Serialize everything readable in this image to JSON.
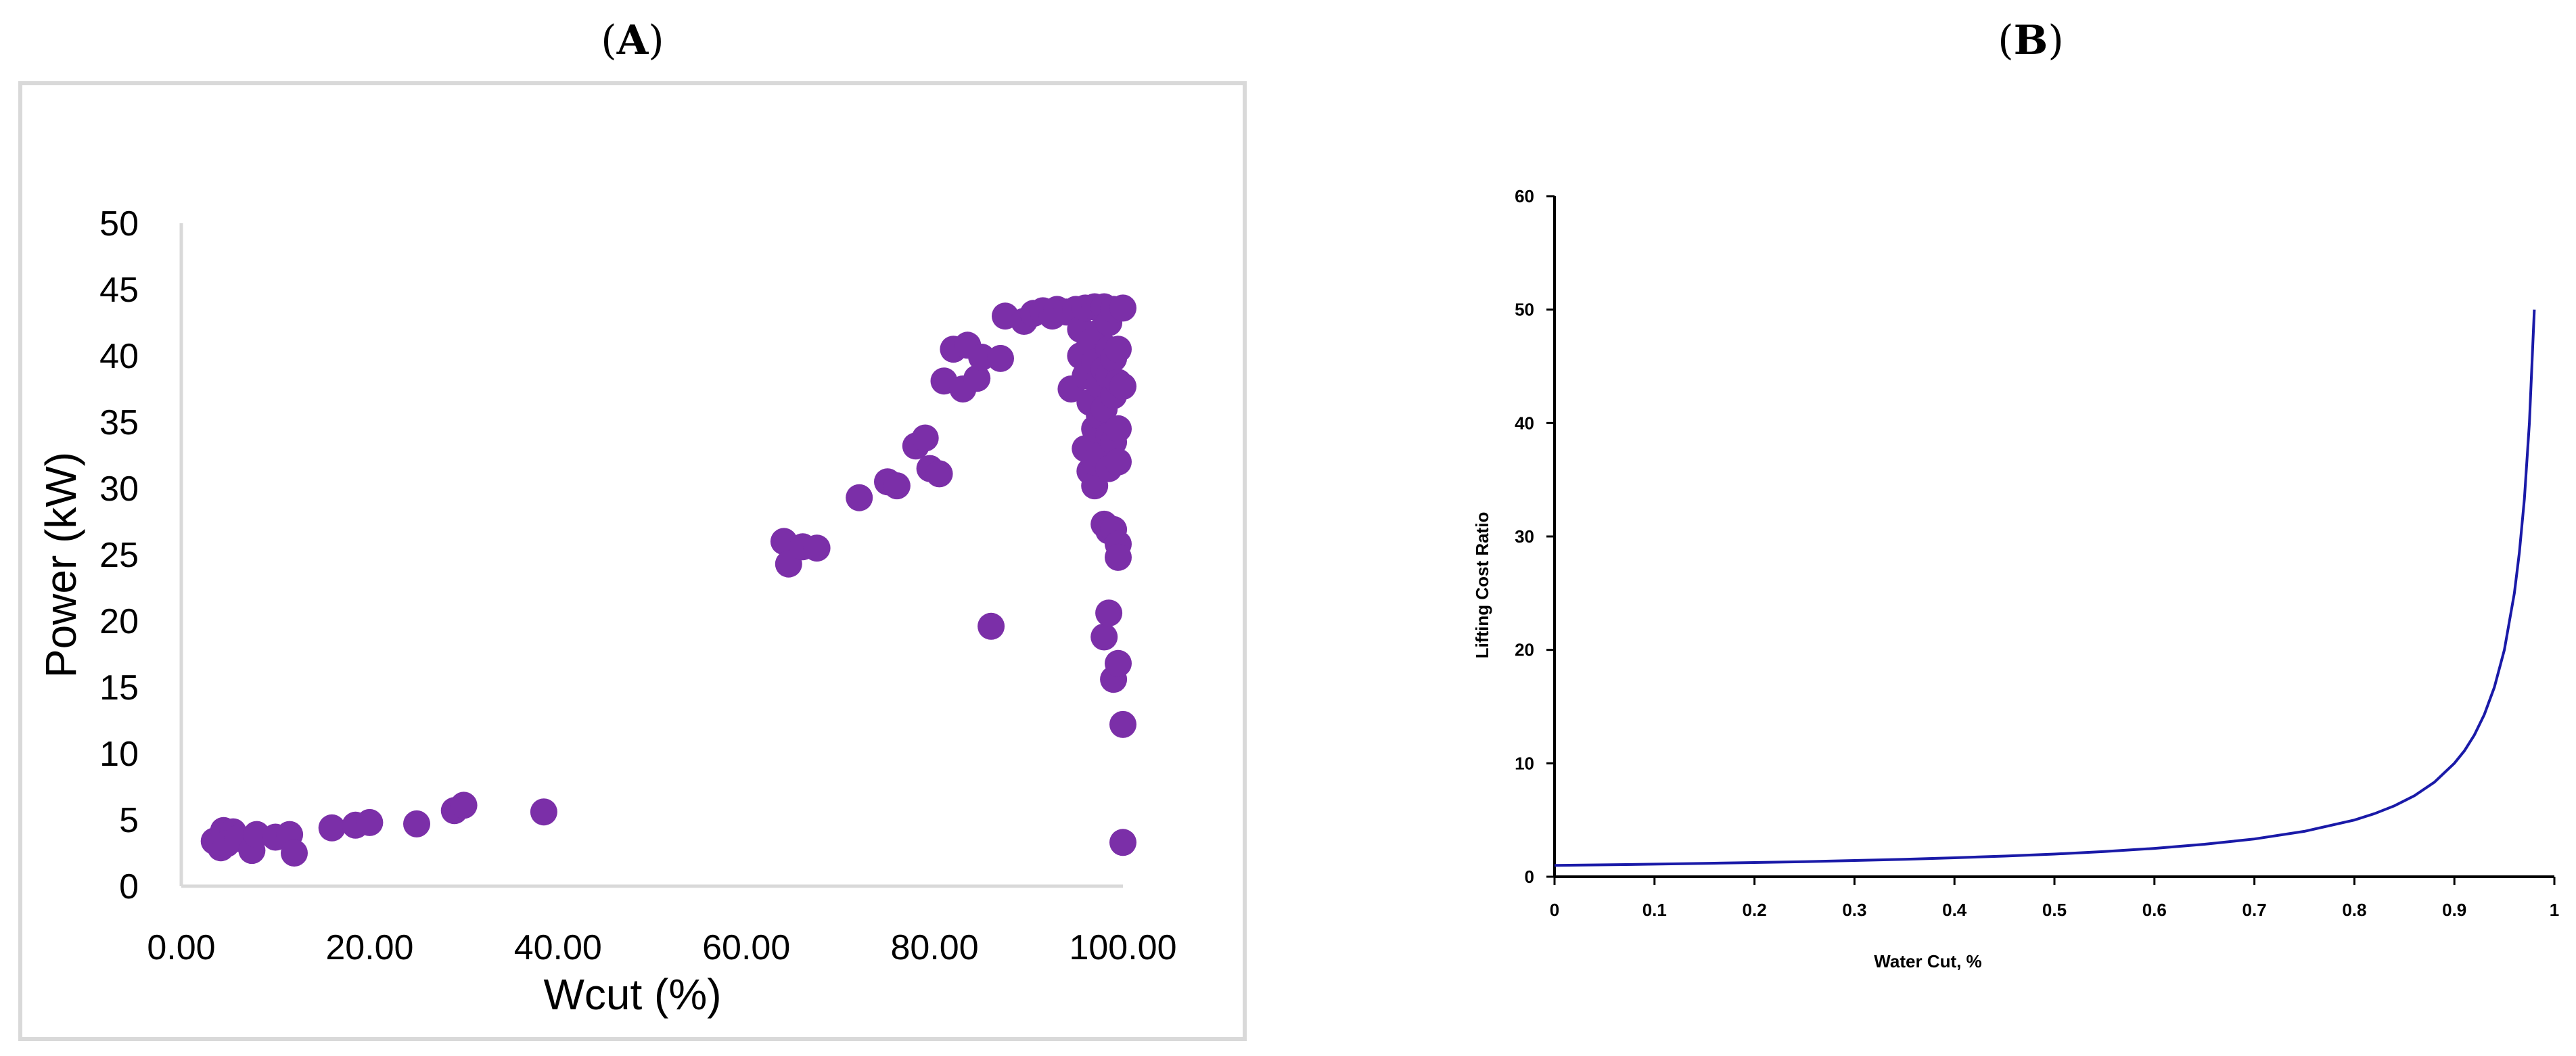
{
  "panels": {
    "a": {
      "label_open": "(",
      "label_letter": "A",
      "label_close": ")"
    },
    "b": {
      "label_open": "(",
      "label_letter": "B",
      "label_close": ")"
    }
  },
  "colors": {
    "scatter_marker": "#7b2fa8",
    "scatter_axis": "#d9d9d9",
    "scatter_frame": "#d9d9d9",
    "line_curve": "#1a1aa8",
    "line_axis": "#000000"
  },
  "chart_data": [
    {
      "type": "scatter",
      "title": "",
      "xlabel": "Wcut (%)",
      "ylabel": "Power (kW)",
      "xlim": [
        0,
        100
      ],
      "ylim": [
        0,
        50
      ],
      "x_ticks": [
        "0.00",
        "20.00",
        "40.00",
        "60.00",
        "80.00",
        "100.00"
      ],
      "y_ticks": [
        "0",
        "5",
        "10",
        "15",
        "20",
        "25",
        "30",
        "35",
        "40",
        "45",
        "50"
      ],
      "grid": false,
      "legend": "none",
      "points": [
        [
          3.5,
          3.4
        ],
        [
          4.2,
          2.9
        ],
        [
          4.5,
          4.2
        ],
        [
          5.5,
          4.1
        ],
        [
          4.8,
          3.2
        ],
        [
          6.0,
          3.6
        ],
        [
          7.5,
          2.7
        ],
        [
          8.0,
          3.9
        ],
        [
          10.0,
          3.7
        ],
        [
          11.5,
          3.9
        ],
        [
          12.0,
          2.5
        ],
        [
          16.0,
          4.4
        ],
        [
          18.5,
          4.6
        ],
        [
          20.0,
          4.8
        ],
        [
          25.0,
          4.7
        ],
        [
          29.0,
          5.7
        ],
        [
          30.0,
          6.1
        ],
        [
          38.5,
          5.6
        ],
        [
          64.0,
          26.0
        ],
        [
          64.5,
          24.3
        ],
        [
          66.0,
          25.6
        ],
        [
          67.5,
          25.5
        ],
        [
          72.0,
          29.3
        ],
        [
          75.0,
          30.5
        ],
        [
          76.0,
          30.2
        ],
        [
          78.0,
          33.2
        ],
        [
          79.0,
          33.8
        ],
        [
          79.5,
          31.5
        ],
        [
          80.5,
          31.1
        ],
        [
          81.0,
          38.1
        ],
        [
          82.0,
          40.5
        ],
        [
          83.0,
          37.5
        ],
        [
          83.5,
          40.8
        ],
        [
          84.5,
          38.3
        ],
        [
          85.0,
          39.9
        ],
        [
          86.0,
          19.6
        ],
        [
          87.0,
          39.8
        ],
        [
          87.5,
          43.0
        ],
        [
          89.5,
          42.6
        ],
        [
          90.5,
          43.2
        ],
        [
          91.5,
          43.4
        ],
        [
          92.5,
          43.0
        ],
        [
          93.0,
          43.5
        ],
        [
          94.0,
          43.3
        ],
        [
          94.5,
          37.5
        ],
        [
          95.0,
          43.5
        ],
        [
          95.5,
          40.0
        ],
        [
          95.5,
          42.0
        ],
        [
          96.0,
          43.6
        ],
        [
          96.0,
          38.5
        ],
        [
          96.0,
          33.0
        ],
        [
          96.5,
          41.0
        ],
        [
          96.5,
          31.3
        ],
        [
          96.5,
          36.5
        ],
        [
          97.0,
          43.7
        ],
        [
          97.0,
          39.5
        ],
        [
          97.0,
          30.2
        ],
        [
          97.0,
          34.5
        ],
        [
          97.0,
          32.0
        ],
        [
          97.5,
          43.6
        ],
        [
          97.5,
          37.8
        ],
        [
          97.5,
          41.8
        ],
        [
          97.5,
          35.5
        ],
        [
          97.5,
          32.5
        ],
        [
          98.0,
          43.7
        ],
        [
          98.0,
          39.0
        ],
        [
          98.0,
          36.0
        ],
        [
          98.0,
          27.3
        ],
        [
          98.0,
          18.8
        ],
        [
          98.5,
          42.5
        ],
        [
          98.5,
          40.5
        ],
        [
          98.5,
          38.5
        ],
        [
          98.5,
          34.0
        ],
        [
          98.5,
          31.5
        ],
        [
          98.5,
          26.8
        ],
        [
          98.5,
          20.6
        ],
        [
          99.0,
          43.5
        ],
        [
          99.0,
          39.8
        ],
        [
          99.0,
          37.0
        ],
        [
          99.0,
          33.5
        ],
        [
          99.0,
          15.6
        ],
        [
          99.0,
          26.9
        ],
        [
          99.5,
          40.5
        ],
        [
          99.5,
          38.0
        ],
        [
          99.5,
          34.5
        ],
        [
          99.5,
          32.0
        ],
        [
          99.5,
          25.8
        ],
        [
          99.5,
          24.8
        ],
        [
          99.5,
          16.8
        ],
        [
          100.0,
          43.6
        ],
        [
          100.0,
          37.7
        ],
        [
          100.0,
          12.2
        ],
        [
          100.0,
          3.3
        ]
      ]
    },
    {
      "type": "line",
      "title": "",
      "xlabel": "Water Cut, %",
      "ylabel": "Lifting Cost Ratio",
      "xlim": [
        0,
        1
      ],
      "ylim": [
        0,
        60
      ],
      "x_ticks": [
        "0",
        "0.1",
        "0.2",
        "0.3",
        "0.4",
        "0.5",
        "0.6",
        "0.7",
        "0.8",
        "0.9",
        "1"
      ],
      "y_ticks": [
        "0",
        "10",
        "20",
        "30",
        "40",
        "50",
        "60"
      ],
      "grid": false,
      "legend": "none",
      "series": [
        {
          "x": [
            0,
            0.05,
            0.1,
            0.15,
            0.2,
            0.25,
            0.3,
            0.35,
            0.4,
            0.45,
            0.5,
            0.55,
            0.6,
            0.65,
            0.7,
            0.75,
            0.8,
            0.82,
            0.84,
            0.86,
            0.88,
            0.9,
            0.91,
            0.92,
            0.93,
            0.94,
            0.95,
            0.96,
            0.965,
            0.97,
            0.975,
            0.98
          ],
          "y": [
            1.0,
            1.05,
            1.11,
            1.18,
            1.25,
            1.33,
            1.43,
            1.54,
            1.67,
            1.82,
            2.0,
            2.22,
            2.5,
            2.86,
            3.33,
            4.0,
            5.0,
            5.56,
            6.25,
            7.14,
            8.33,
            10.0,
            11.1,
            12.5,
            14.3,
            16.7,
            20.0,
            25.0,
            28.6,
            33.3,
            40.0,
            50.0
          ]
        }
      ]
    }
  ]
}
